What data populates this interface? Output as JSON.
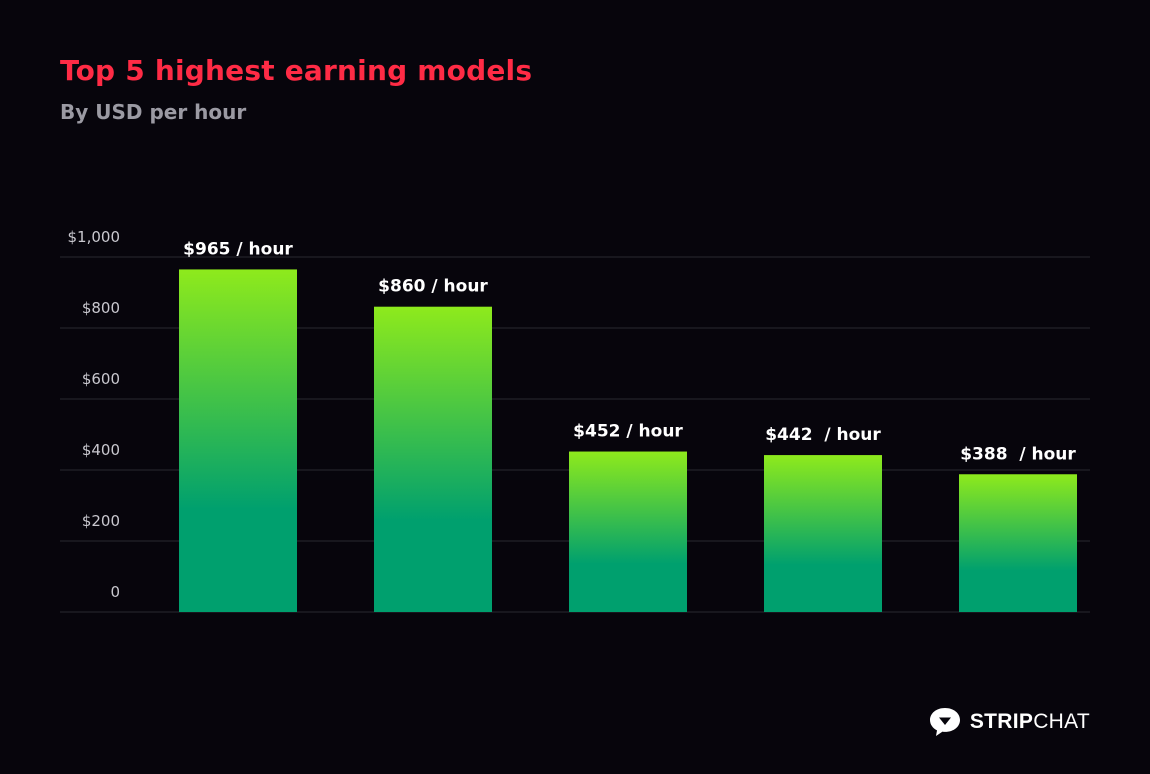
{
  "title": "Top 5 highest earning models",
  "subtitle": "By USD per hour",
  "colors": {
    "background": "#07050c",
    "title": "#ff2b45",
    "bar_top": "#8eea1c",
    "bar_bottom": "#00a06e",
    "grid": "#2a2930"
  },
  "chart_data": {
    "type": "bar",
    "categories": [
      "",
      "",
      "",
      "",
      ""
    ],
    "values": [
      965,
      860,
      452,
      442,
      388
    ],
    "data_labels": [
      "$965 / hour",
      "$860 / hour",
      "$452 / hour",
      "$442  / hour",
      "$388  / hour"
    ],
    "title": "Top 5 highest earning models",
    "subtitle": "By USD per hour",
    "xlabel": "",
    "ylabel": "",
    "ylim": [
      0,
      1000
    ],
    "y_ticks": [
      0,
      200,
      400,
      600,
      800,
      1000
    ],
    "y_tick_labels": [
      "0",
      "$200",
      "$400",
      "$600",
      "$800",
      "$1,000"
    ],
    "grid": true,
    "legend": "none"
  },
  "logo": {
    "icon": "chat-bubble-icon",
    "text_bold": "STRIP",
    "text_light": "CHAT"
  }
}
